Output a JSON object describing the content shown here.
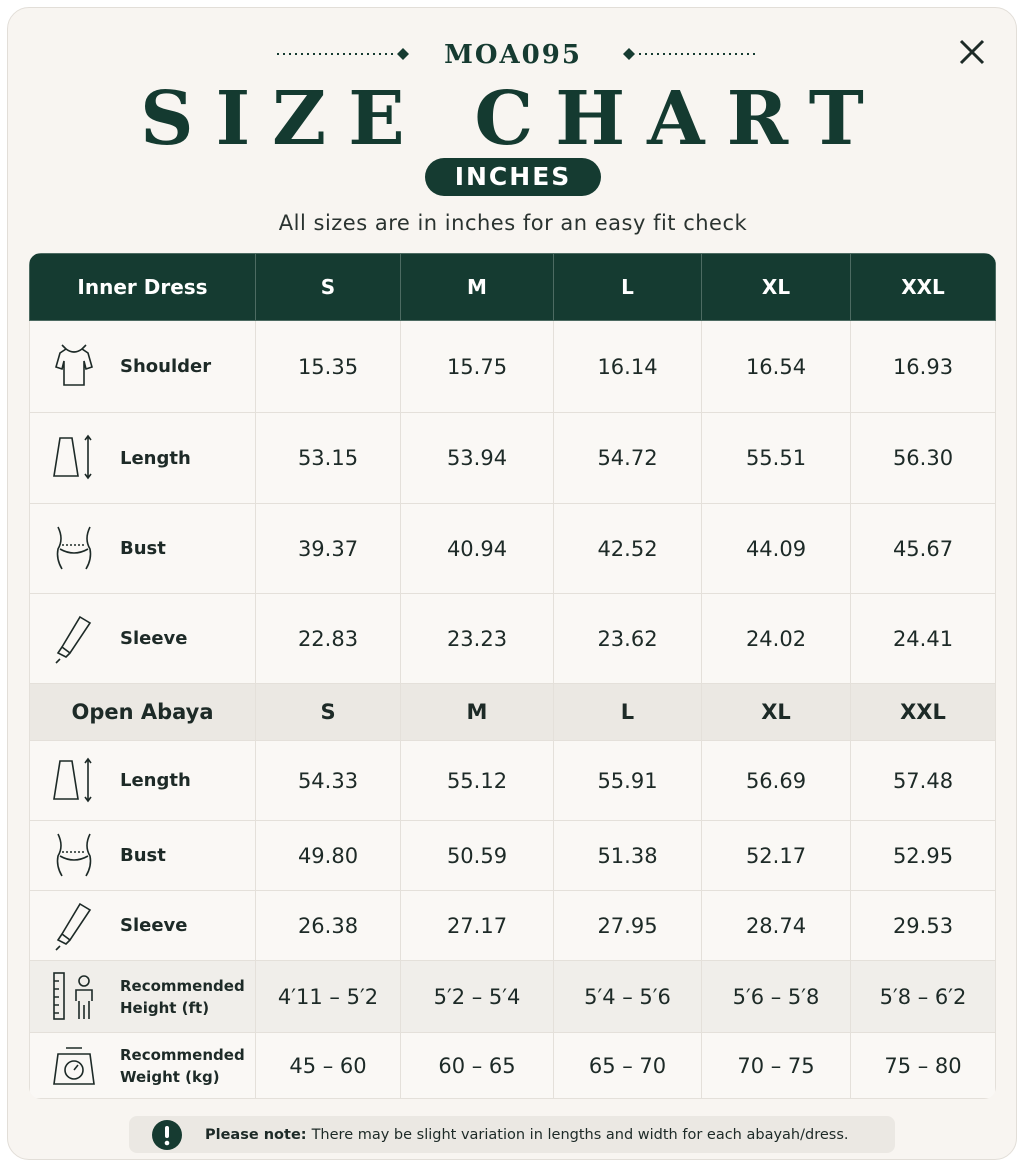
{
  "header": {
    "code": "MOA095",
    "title": "SIZE CHART",
    "unit": "INCHES",
    "subtitle": "All sizes are in inches for an easy fit check"
  },
  "sections": [
    {
      "title": "Inner Dress",
      "sizes": [
        "S",
        "M",
        "L",
        "XL",
        "XXL"
      ],
      "rows": [
        {
          "label": "Shoulder",
          "values": [
            "15.35",
            "15.75",
            "16.14",
            "16.54",
            "16.93"
          ]
        },
        {
          "label": "Length",
          "values": [
            "53.15",
            "53.94",
            "54.72",
            "55.51",
            "56.30"
          ]
        },
        {
          "label": "Bust",
          "values": [
            "39.37",
            "40.94",
            "42.52",
            "44.09",
            "45.67"
          ]
        },
        {
          "label": "Sleeve",
          "values": [
            "22.83",
            "23.23",
            "23.62",
            "24.02",
            "24.41"
          ]
        }
      ]
    },
    {
      "title": "Open Abaya",
      "sizes": [
        "S",
        "M",
        "L",
        "XL",
        "XXL"
      ],
      "rows": [
        {
          "label": "Length",
          "values": [
            "54.33",
            "55.12",
            "55.91",
            "56.69",
            "57.48"
          ]
        },
        {
          "label": "Bust",
          "values": [
            "49.80",
            "50.59",
            "51.38",
            "52.17",
            "52.95"
          ]
        },
        {
          "label": "Sleeve",
          "values": [
            "26.38",
            "27.17",
            "27.95",
            "28.74",
            "29.53"
          ]
        }
      ]
    }
  ],
  "recommendations": [
    {
      "label": "Recommended Height (ft)",
      "values": [
        "4′11 – 5′2",
        "5′2 – 5′4",
        "5′4 – 5′6",
        "5′6 – 5′8",
        "5′8 – 6′2"
      ]
    },
    {
      "label": "Recommended Weight (kg)",
      "values": [
        "45 – 60",
        "60 – 65",
        "65 – 70",
        "70 – 75",
        "75 – 80"
      ]
    }
  ],
  "note": {
    "label": "Please note:",
    "text": "There may be slight variation in lengths and width for each abayah/dress."
  }
}
